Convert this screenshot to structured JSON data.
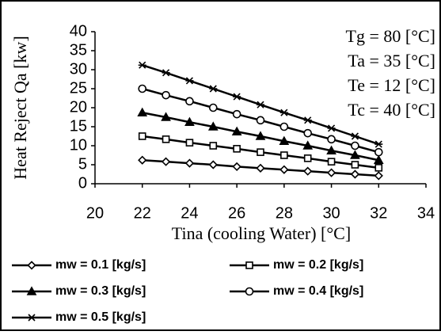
{
  "chart_data": {
    "type": "line",
    "x_label": "Tina (cooling Water) [°C]",
    "y_label": "Heat Reject  Qa [kw]",
    "annotations": [
      "Tg = 80 [°C]",
      "Ta = 35 [°C]",
      "Te = 12 [°C]",
      "Tc = 40 [°C]"
    ],
    "x": [
      22,
      23,
      24,
      25,
      26,
      27,
      28,
      29,
      30,
      31,
      32
    ],
    "series": [
      {
        "name": "mw = 0.1 [kg/s]",
        "color": "#000000",
        "marker": "diamond",
        "values": [
          6.2,
          5.8,
          5.4,
          5.0,
          4.5,
          4.1,
          3.7,
          3.3,
          2.9,
          2.5,
          2.1
        ]
      },
      {
        "name": "mw = 0.2 [kg/s]",
        "color": "#000000",
        "marker": "square",
        "values": [
          12.5,
          11.7,
          10.8,
          10.0,
          9.2,
          8.3,
          7.5,
          6.7,
          5.8,
          5.0,
          4.2
        ]
      },
      {
        "name": "mw = 0.3 [kg/s]",
        "color": "#000000",
        "marker": "triangle",
        "values": [
          18.7,
          17.5,
          16.2,
          15.0,
          13.7,
          12.5,
          11.2,
          10.0,
          8.7,
          7.5,
          6.2
        ]
      },
      {
        "name": "mw = 0.4 [kg/s]",
        "color": "#000000",
        "marker": "circle",
        "values": [
          25.0,
          23.3,
          21.7,
          20.0,
          18.3,
          16.7,
          15.0,
          13.3,
          11.7,
          10.0,
          8.3
        ]
      },
      {
        "name": "mw = 0.5 [kg/s]",
        "color": "#000000",
        "marker": "star",
        "values": [
          31.2,
          29.2,
          27.1,
          25.0,
          22.9,
          20.8,
          18.7,
          16.7,
          14.6,
          12.5,
          10.4
        ]
      }
    ],
    "xlim": [
      20,
      34
    ],
    "xticks": [
      20,
      22,
      24,
      26,
      28,
      30,
      32,
      34
    ],
    "ylim": [
      0,
      40
    ],
    "yticks": [
      0,
      5,
      10,
      15,
      20,
      25,
      30,
      35,
      40
    ],
    "grid": false,
    "legend": "bottom"
  }
}
